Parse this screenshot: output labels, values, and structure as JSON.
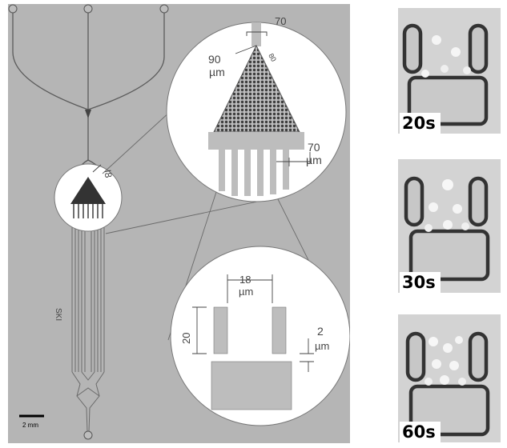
{
  "device": {
    "small_label": "I8",
    "side_label": "SKI",
    "scale_bar": "2 mm"
  },
  "zoom_triangle": {
    "tip_label": "80",
    "width_value": "90",
    "width_unit": "µm",
    "top_partial": "70",
    "gap_value": "70",
    "gap_unit": "µm"
  },
  "zoom_trap": {
    "spacing_value": "18",
    "spacing_unit": "µm",
    "height_value": "20",
    "gap_value": "2",
    "gap_unit": "µm"
  },
  "timelapse": [
    {
      "label": "20s"
    },
    {
      "label": "30s"
    },
    {
      "label": "60s"
    }
  ]
}
